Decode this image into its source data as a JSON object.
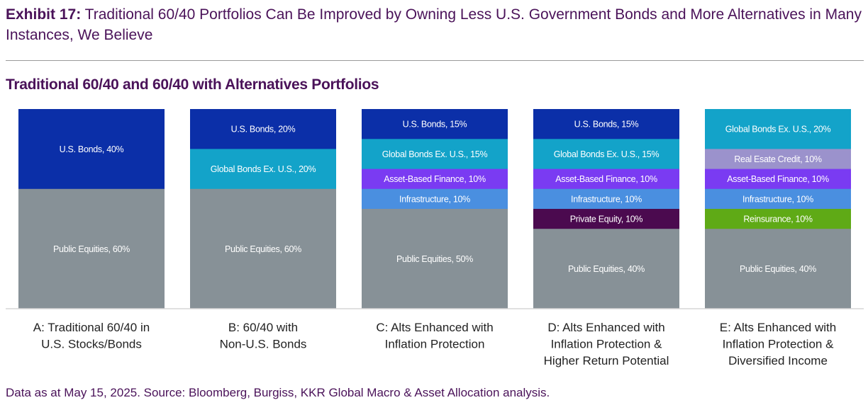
{
  "header": {
    "exhibit": "Exhibit 17:",
    "title": "Traditional 60/40 Portfolios Can Be Improved by Owning Less U.S. Government Bonds and More Alternatives in Many Instances, We Believe"
  },
  "subtitle": "Traditional 60/40 and 60/40 with Alternatives Portfolios",
  "footnote": "Data as at May 15, 2025. Source: Bloomberg, Burgiss, KKR Global Macro & Asset Allocation analysis.",
  "chart_data": {
    "type": "bar",
    "stacked": true,
    "unit": "%",
    "categories": [
      "A: Traditional 60/40 in U.S. Stocks/Bonds",
      "B: 60/40 with Non-U.S. Bonds",
      "C: Alts Enhanced with Inflation Protection",
      "D: Alts Enhanced with Inflation Protection & Higher Return Potential",
      "E: Alts Enhanced with Inflation Protection & Diversified Income"
    ],
    "category_lines": [
      [
        "A: Traditional 60/40 in",
        "U.S. Stocks/Bonds"
      ],
      [
        "B: 60/40 with",
        "Non-U.S. Bonds"
      ],
      [
        "C: Alts Enhanced with",
        "Inflation Protection"
      ],
      [
        "D: Alts Enhanced with",
        "Inflation Protection &",
        "Higher Return Potential"
      ],
      [
        "E: Alts Enhanced with",
        "Inflation Protection &",
        "Diversified Income"
      ]
    ],
    "stacks": [
      [
        {
          "label": "U.S. Bonds, 40%",
          "value": 40,
          "color": "#0b2fa8"
        },
        {
          "label": "Public Equities, 60%",
          "value": 60,
          "color": "#879197"
        }
      ],
      [
        {
          "label": "U.S. Bonds, 20%",
          "value": 20,
          "color": "#0b2fa8"
        },
        {
          "label": "Global Bonds Ex. U.S., 20%",
          "value": 20,
          "color": "#13a3c9"
        },
        {
          "label": "Public Equities, 60%",
          "value": 60,
          "color": "#879197"
        }
      ],
      [
        {
          "label": "U.S. Bonds, 15%",
          "value": 15,
          "color": "#0b2fa8"
        },
        {
          "label": "Global Bonds Ex. U.S., 15%",
          "value": 15,
          "color": "#13a3c9"
        },
        {
          "label": "Asset-Based Finance, 10%",
          "value": 10,
          "color": "#7a3bf2"
        },
        {
          "label": "Infrastructure, 10%",
          "value": 10,
          "color": "#4a8fe0"
        },
        {
          "label": "Public Equities, 50%",
          "value": 50,
          "color": "#879197"
        }
      ],
      [
        {
          "label": "U.S. Bonds, 15%",
          "value": 15,
          "color": "#0b2fa8"
        },
        {
          "label": "Global Bonds Ex. U.S., 15%",
          "value": 15,
          "color": "#13a3c9"
        },
        {
          "label": "Asset-Based Finance, 10%",
          "value": 10,
          "color": "#7a3bf2"
        },
        {
          "label": "Infrastructure, 10%",
          "value": 10,
          "color": "#4a8fe0"
        },
        {
          "label": "Private Equity, 10%",
          "value": 10,
          "color": "#4b0a4f"
        },
        {
          "label": "Public Equities, 40%",
          "value": 40,
          "color": "#879197"
        }
      ],
      [
        {
          "label": "Global Bonds Ex. U.S., 20%",
          "value": 20,
          "color": "#13a3c9"
        },
        {
          "label": "Real Esate Credit, 10%",
          "value": 10,
          "color": "#9b92cc"
        },
        {
          "label": "Asset-Based Finance, 10%",
          "value": 10,
          "color": "#7a3bf2"
        },
        {
          "label": "Infrastructure, 10%",
          "value": 10,
          "color": "#4a8fe0"
        },
        {
          "label": "Reinsurance, 10%",
          "value": 10,
          "color": "#5faa16"
        },
        {
          "label": "Public Equities, 40%",
          "value": 40,
          "color": "#879197"
        }
      ]
    ],
    "ylim": [
      0,
      100
    ],
    "grid": false,
    "legend": "none"
  }
}
